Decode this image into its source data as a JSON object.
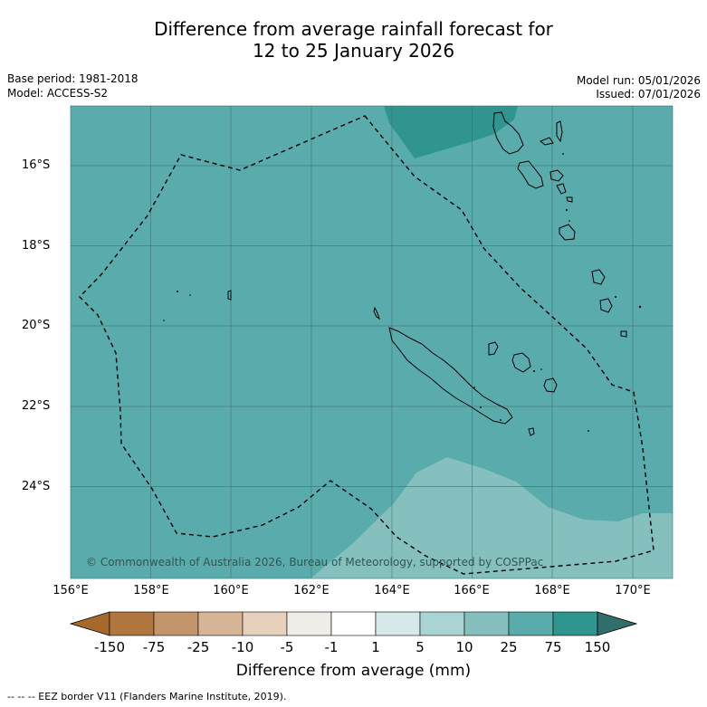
{
  "title_line1": "Difference from average rainfall forecast for",
  "title_line2": "12 to 25 January 2026",
  "base_period": "Base period: 1981-2018",
  "model": "Model: ACCESS-S2",
  "model_run": "Model run: 05/01/2026",
  "issued": "Issued: 07/01/2026",
  "copyright": "© Commonwealth of Australia 2026, Bureau of Meteorology, supported by COSPPac",
  "footer": "--  --  -- EEZ border V11 (Flanders Marine Institute, 2019).",
  "map": {
    "lat_ticks": [
      "16°S",
      "18°S",
      "20°S",
      "22°S",
      "24°S"
    ],
    "lon_ticks": [
      "156°E",
      "158°E",
      "160°E",
      "162°E",
      "164°E",
      "166°E",
      "168°E",
      "170°E"
    ],
    "lon_range": [
      156,
      171
    ],
    "lat_range": [
      -26.3,
      -14.6
    ]
  },
  "colorbar": {
    "title": "Difference from average (mm)",
    "tick_labels": [
      "-150",
      "-75",
      "-25",
      "-10",
      "-5",
      "-1",
      "1",
      "5",
      "10",
      "25",
      "75",
      "150"
    ],
    "colors": [
      "#a6692b",
      "#b07640",
      "#c3956a",
      "#d6b496",
      "#e7d1bd",
      "#f0ece8",
      "#ffffff",
      "#d5eae8",
      "#aad4d3",
      "#85c0be",
      "#5aabab",
      "#30958f",
      "#316d6a"
    ]
  },
  "shading_colors": {
    "above_10": "#85c0be",
    "above_25": "#5aabab",
    "above_75": "#30958f"
  }
}
